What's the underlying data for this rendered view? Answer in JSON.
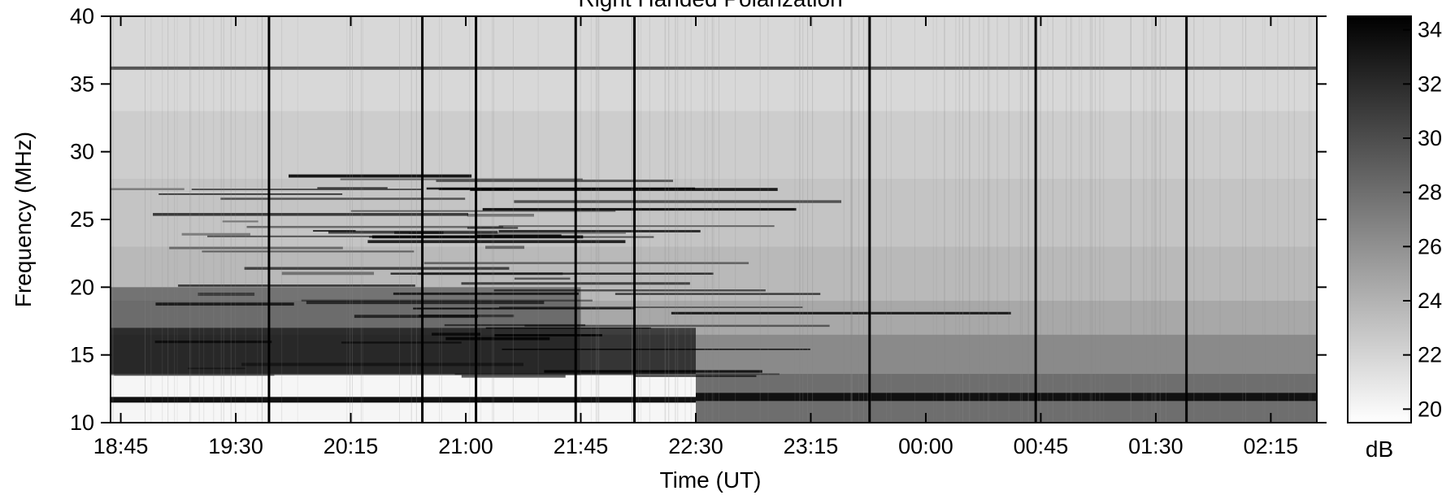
{
  "chart_data": {
    "type": "heatmap",
    "title": "Right Handed Polarization",
    "xlabel": "Time (UT)",
    "ylabel": "Frequency (MHz)",
    "xlim": [
      "18:41",
      "02:33"
    ],
    "ylim": [
      10,
      40
    ],
    "x_tick_labels": [
      "18:45",
      "19:30",
      "20:15",
      "21:00",
      "21:45",
      "22:30",
      "23:15",
      "00:00",
      "00:45",
      "01:30",
      "02:15"
    ],
    "y_tick_labels": [
      "10",
      "15",
      "20",
      "25",
      "30",
      "35",
      "40"
    ],
    "colorbar": {
      "label": "dB",
      "range": [
        19.5,
        34.5
      ],
      "tick_labels": [
        "20",
        "22",
        "24",
        "26",
        "28",
        "30",
        "32",
        "34"
      ],
      "colormap": "grayscale, white (low) to black (high)"
    },
    "features": {
      "persistent_line_freq_mhz": 36.2,
      "vertical_bursts_utc": [
        "19:43",
        "20:43",
        "21:04",
        "21:43",
        "22:06",
        "23:38",
        "00:43",
        "01:42"
      ],
      "receiver_change_utc": "22:30"
    }
  }
}
